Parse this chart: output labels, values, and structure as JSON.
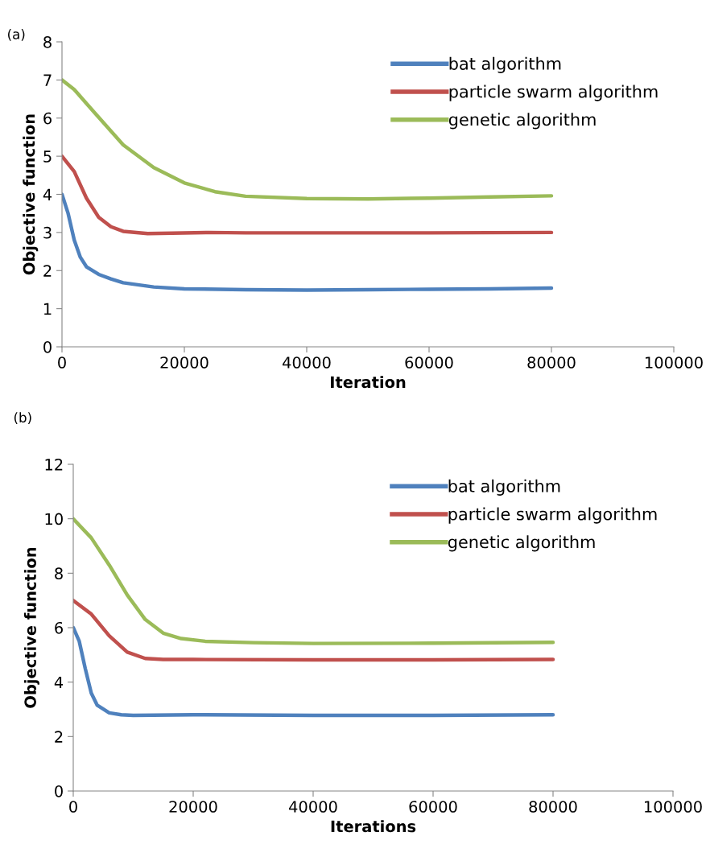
{
  "chart_data": [
    {
      "type": "line",
      "title": "(a)",
      "xlabel": "Iteration",
      "ylabel": "Objective function",
      "xlim": [
        0,
        100000
      ],
      "xticks": [
        0,
        20000,
        40000,
        60000,
        80000,
        100000
      ],
      "ylim": [
        0,
        8
      ],
      "yticks": [
        0,
        1,
        2,
        3,
        4,
        5,
        6,
        7,
        8
      ],
      "grid": false,
      "legend": "top right",
      "marker": "none",
      "line_style": "solid",
      "series": [
        {
          "name": "bat algorithm",
          "color": "#4f81bd",
          "x": [
            0,
            1000,
            2000,
            3000,
            4000,
            6000,
            8000,
            10000,
            15000,
            20000,
            30000,
            40000,
            50000,
            60000,
            70000,
            80000
          ],
          "values": [
            4,
            3.5,
            2.8,
            2.35,
            2.1,
            1.9,
            1.78,
            1.68,
            1.57,
            1.52,
            1.5,
            1.49,
            1.5,
            1.51,
            1.52,
            1.54
          ]
        },
        {
          "name": "particle swarm algorithm",
          "color": "#c0504d",
          "x": [
            0,
            2000,
            4000,
            6000,
            8000,
            10000,
            14000,
            18000,
            24000,
            30000,
            40000,
            60000,
            80000
          ],
          "values": [
            5,
            4.6,
            3.9,
            3.4,
            3.15,
            3.03,
            2.97,
            2.98,
            3.0,
            2.99,
            2.99,
            2.99,
            3.0
          ]
        },
        {
          "name": "genetic algorithm",
          "color": "#9bbb59",
          "x": [
            0,
            2000,
            5000,
            10000,
            15000,
            20000,
            25000,
            30000,
            40000,
            50000,
            60000,
            70000,
            80000
          ],
          "values": [
            7,
            6.75,
            6.2,
            5.3,
            4.7,
            4.3,
            4.07,
            3.95,
            3.89,
            3.88,
            3.9,
            3.93,
            3.96
          ]
        }
      ]
    },
    {
      "type": "line",
      "title": "(b)",
      "xlabel": "Iterations",
      "ylabel": "Objective function",
      "xlim": [
        0,
        100000
      ],
      "xticks": [
        0,
        20000,
        40000,
        60000,
        80000,
        100000
      ],
      "ylim": [
        0,
        12
      ],
      "yticks": [
        0,
        2,
        4,
        6,
        8,
        10,
        12
      ],
      "grid": false,
      "legend": "top right",
      "marker": "none",
      "line_style": "solid",
      "series": [
        {
          "name": "bat algorithm",
          "color": "#4f81bd",
          "x": [
            0,
            1000,
            2000,
            3000,
            4000,
            6000,
            8000,
            10000,
            20000,
            40000,
            60000,
            80000
          ],
          "values": [
            6,
            5.5,
            4.5,
            3.6,
            3.15,
            2.87,
            2.8,
            2.78,
            2.8,
            2.78,
            2.78,
            2.8
          ]
        },
        {
          "name": "particle swarm algorithm",
          "color": "#c0504d",
          "x": [
            0,
            3000,
            6000,
            9000,
            12000,
            15000,
            20000,
            40000,
            60000,
            80000
          ],
          "values": [
            7,
            6.5,
            5.7,
            5.1,
            4.87,
            4.83,
            4.83,
            4.82,
            4.82,
            4.83
          ]
        },
        {
          "name": "genetic algorithm",
          "color": "#9bbb59",
          "x": [
            0,
            3000,
            6000,
            9000,
            12000,
            15000,
            18000,
            22000,
            30000,
            40000,
            60000,
            80000
          ],
          "values": [
            10,
            9.3,
            8.3,
            7.2,
            6.3,
            5.8,
            5.6,
            5.5,
            5.45,
            5.42,
            5.43,
            5.46
          ]
        }
      ]
    }
  ]
}
